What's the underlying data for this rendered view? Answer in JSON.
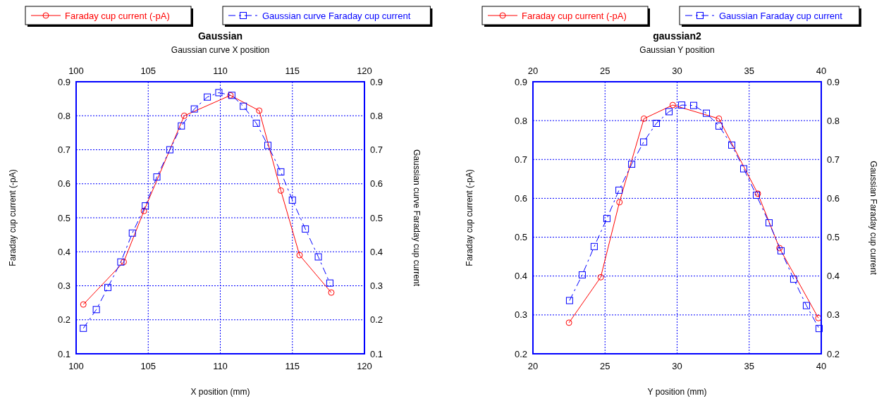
{
  "chart_data": [
    {
      "type": "line",
      "title": "Gaussian",
      "xlabel": "X position (mm)",
      "x2label": "Gaussian curve X position",
      "ylabel": "Faraday cup current (-pA)",
      "y2label": "Gaussian curve Faraday cup current",
      "xlim": [
        100,
        120
      ],
      "xticks": [
        100,
        105,
        110,
        115,
        120
      ],
      "x2lim": [
        100,
        120
      ],
      "x2ticks": [
        100,
        105,
        110,
        115,
        120
      ],
      "ylim": [
        0.1,
        0.9
      ],
      "yticks": [
        0.1,
        0.2,
        0.3,
        0.4,
        0.5,
        0.6,
        0.7,
        0.8,
        0.9
      ],
      "y2lim": [
        0.1,
        0.9
      ],
      "y2ticks": [
        0.1,
        0.2,
        0.3,
        0.4,
        0.5,
        0.6,
        0.7,
        0.8,
        0.9
      ],
      "grid": true,
      "legend": "top",
      "series": [
        {
          "name": "Faraday cup current (-pA)",
          "color": "#ff0000",
          "marker": "circle",
          "line_style": "solid",
          "x": [
            100.5,
            103.3,
            104.7,
            107.5,
            110.7,
            112.7,
            114.2,
            115.5,
            117.7
          ],
          "values": [
            0.245,
            0.37,
            0.52,
            0.8,
            0.86,
            0.815,
            0.58,
            0.39,
            0.28
          ]
        },
        {
          "name": "Gaussian curve Faraday cup current",
          "color": "#0000ff",
          "marker": "square",
          "line_style": "dashed",
          "x": [
            100.5,
            101.4,
            102.2,
            103.1,
            103.9,
            104.8,
            105.6,
            106.5,
            107.3,
            108.2,
            109.1,
            109.9,
            110.8,
            111.6,
            112.5,
            113.3,
            114.2,
            115.0,
            115.9,
            116.8,
            117.6
          ],
          "values": [
            0.175,
            0.23,
            0.295,
            0.37,
            0.455,
            0.535,
            0.62,
            0.7,
            0.77,
            0.82,
            0.855,
            0.868,
            0.86,
            0.828,
            0.778,
            0.713,
            0.635,
            0.552,
            0.467,
            0.385,
            0.308
          ]
        }
      ]
    },
    {
      "type": "line",
      "title": "gaussian2",
      "xlabel": "Y position (mm)",
      "x2label": "Gaussian Y position",
      "ylabel": "Faraday cup current (-pA)",
      "y2label": "Gaussian Faraday cup current",
      "xlim": [
        20,
        40
      ],
      "xticks": [
        20,
        25,
        30,
        35,
        40
      ],
      "x2lim": [
        20,
        40
      ],
      "x2ticks": [
        20,
        25,
        30,
        35,
        40
      ],
      "ylim": [
        0.2,
        0.9
      ],
      "yticks": [
        0.2,
        0.3,
        0.4,
        0.5,
        0.6,
        0.7,
        0.8,
        0.9
      ],
      "y2lim": [
        0.2,
        0.9
      ],
      "y2ticks": [
        0.2,
        0.3,
        0.4,
        0.5,
        0.6,
        0.7,
        0.8,
        0.9
      ],
      "grid": true,
      "legend": "top",
      "series": [
        {
          "name": "Faraday cup current (-pA)",
          "color": "#ff0000",
          "marker": "circle",
          "line_style": "solid",
          "x": [
            22.5,
            24.7,
            26.0,
            27.7,
            29.7,
            32.9,
            35.6,
            37.1,
            39.8
          ],
          "values": [
            0.28,
            0.397,
            0.59,
            0.805,
            0.84,
            0.805,
            0.612,
            0.472,
            0.292
          ]
        },
        {
          "name": "Gaussian Faraday cup current",
          "color": "#0000ff",
          "marker": "square",
          "line_style": "dashed",
          "x": [
            22.54,
            23.42,
            24.25,
            25.13,
            25.97,
            26.85,
            27.68,
            28.56,
            29.44,
            30.32,
            31.15,
            32.03,
            32.91,
            33.79,
            34.62,
            35.5,
            36.38,
            37.21,
            38.09,
            38.97,
            39.85
          ],
          "values": [
            0.337,
            0.403,
            0.476,
            0.548,
            0.621,
            0.688,
            0.745,
            0.793,
            0.823,
            0.84,
            0.839,
            0.819,
            0.786,
            0.737,
            0.676,
            0.608,
            0.537,
            0.465,
            0.392,
            0.324,
            0.265
          ]
        }
      ]
    }
  ]
}
